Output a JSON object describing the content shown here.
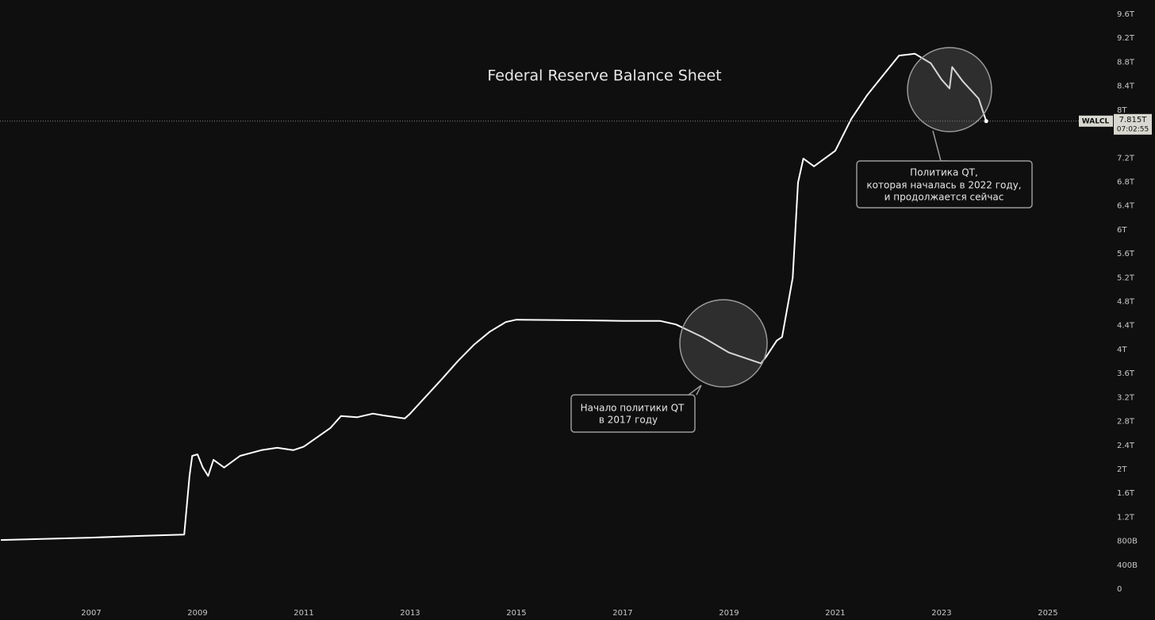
{
  "chart_data": {
    "type": "line",
    "title": "Federal Reserve Balance Sheet",
    "x": [
      2005.3,
      2007.0,
      2008.0,
      2008.75,
      2008.85,
      2008.9,
      2009.0,
      2009.1,
      2009.2,
      2009.3,
      2009.5,
      2009.8,
      2010.2,
      2010.5,
      2010.8,
      2011.0,
      2011.5,
      2011.7,
      2012.0,
      2012.3,
      2012.5,
      2012.9,
      2013.0,
      2013.3,
      2013.6,
      2013.9,
      2014.2,
      2014.5,
      2014.8,
      2015.0,
      2016.0,
      2017.0,
      2017.7,
      2018.0,
      2018.5,
      2019.0,
      2019.6,
      2019.7,
      2019.9,
      2020.0,
      2020.2,
      2020.3,
      2020.4,
      2020.6,
      2021.0,
      2021.3,
      2021.6,
      2021.9,
      2022.2,
      2022.5,
      2022.8,
      2023.0,
      2023.15,
      2023.2,
      2023.4,
      2023.7,
      2023.84
    ],
    "series": [
      {
        "name": "WALCL",
        "color": "#ffffff",
        "values": [
          820,
          860,
          890,
          910,
          1890,
          2225,
          2250,
          2030,
          1890,
          2160,
          2030,
          2225,
          2320,
          2360,
          2320,
          2380,
          2690,
          2890,
          2870,
          2930,
          2900,
          2850,
          2930,
          3220,
          3510,
          3810,
          4080,
          4300,
          4460,
          4500,
          4490,
          4480,
          4480,
          4420,
          4210,
          3950,
          3770,
          3880,
          4150,
          4210,
          5200,
          6790,
          7190,
          7060,
          7320,
          7850,
          8250,
          8580,
          8910,
          8940,
          8780,
          8510,
          8360,
          8720,
          8480,
          8190,
          7815
        ]
      }
    ],
    "last_label": "7.815T",
    "last_time": "07:02:55",
    "xlim": [
      2005.284,
      2026.18
    ],
    "xticks": [
      2007,
      2009,
      2011,
      2013,
      2015,
      2017,
      2019,
      2021,
      2023,
      2025
    ],
    "ylim": [
      0,
      9600
    ],
    "yticks": [
      0,
      {
        "value": 400,
        "label": "400B"
      },
      {
        "value": 800,
        "label": "800B"
      },
      {
        "value": 1200,
        "label": "1.2T"
      },
      {
        "value": 1600,
        "label": "1.6T"
      },
      {
        "value": 2000,
        "label": "2T"
      },
      {
        "value": 2400,
        "label": "2.4T"
      },
      {
        "value": 2800,
        "label": "2.8T"
      },
      {
        "value": 3200,
        "label": "3.2T"
      },
      {
        "value": 3600,
        "label": "3.6T"
      },
      {
        "value": 4000,
        "label": "4T"
      },
      {
        "value": 4400,
        "label": "4.4T"
      },
      {
        "value": 4800,
        "label": "4.8T"
      },
      {
        "value": 5200,
        "label": "5.2T"
      },
      {
        "value": 5600,
        "label": "5.6T"
      },
      {
        "value": 6000,
        "label": "6T"
      },
      {
        "value": 6400,
        "label": "6.4T"
      },
      {
        "value": 6800,
        "label": "6.8T"
      },
      {
        "value": 7200,
        "label": "7.2T"
      },
      {
        "value": 8000,
        "label": "8T"
      },
      {
        "value": 8400,
        "label": "8.4T"
      },
      {
        "value": 8800,
        "label": "8.8T"
      },
      {
        "value": 9200,
        "label": "9.2T"
      },
      {
        "value": 9600,
        "label": "9.6T"
      }
    ],
    "annotations": [
      {
        "lines": [
          "Начало политики QT",
          "в 2017 году"
        ]
      },
      {
        "lines": [
          "Политика QT,",
          "которая началась в 2022 году,",
          "и продолжается сейчас"
        ]
      }
    ]
  }
}
